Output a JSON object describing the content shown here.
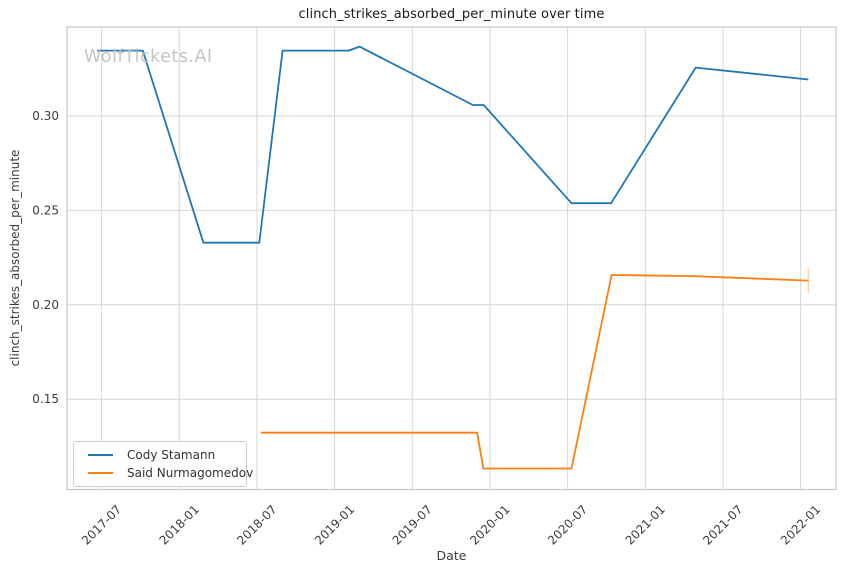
{
  "chart_data": {
    "type": "line",
    "title": "clinch_strikes_absorbed_per_minute over time",
    "xlabel": "Date",
    "ylabel": "clinch_strikes_absorbed_per_minute",
    "watermark": "WolfTickets.AI",
    "grid": true,
    "legend_position": "lower left",
    "xlim": [
      2017.277,
      2022.228
    ],
    "ylim": [
      0.1022,
      0.3471
    ],
    "x_ticks": [
      {
        "value": 2017.5,
        "label": "2017-07"
      },
      {
        "value": 2018.0,
        "label": "2018-01"
      },
      {
        "value": 2018.5,
        "label": "2018-07"
      },
      {
        "value": 2019.0,
        "label": "2019-01"
      },
      {
        "value": 2019.5,
        "label": "2019-07"
      },
      {
        "value": 2020.0,
        "label": "2020-01"
      },
      {
        "value": 2020.5,
        "label": "2020-07"
      },
      {
        "value": 2021.0,
        "label": "2021-01"
      },
      {
        "value": 2021.5,
        "label": "2021-07"
      },
      {
        "value": 2022.0,
        "label": "2022-01"
      }
    ],
    "y_ticks": [
      {
        "value": 0.15,
        "label": "0.15"
      },
      {
        "value": 0.2,
        "label": "0.20"
      },
      {
        "value": 0.25,
        "label": "0.25"
      },
      {
        "value": 0.3,
        "label": "0.30"
      }
    ],
    "series": [
      {
        "name": "Cody Stamann",
        "color": "#1f77b4",
        "points": [
          [
            2017.47,
            0.3346
          ],
          [
            2017.765,
            0.3346
          ],
          [
            2018.155,
            0.2329
          ],
          [
            2018.515,
            0.2329
          ],
          [
            2018.665,
            0.3346
          ],
          [
            2019.09,
            0.3346
          ],
          [
            2019.16,
            0.3367
          ],
          [
            2019.89,
            0.3058
          ],
          [
            2019.96,
            0.3058
          ],
          [
            2020.525,
            0.2538
          ],
          [
            2020.78,
            0.2538
          ],
          [
            2021.325,
            0.3256
          ],
          [
            2022.05,
            0.3193
          ]
        ]
      },
      {
        "name": "Said Nurmagomedov",
        "color": "#ff7f0e",
        "points": [
          [
            2018.525,
            0.1323
          ],
          [
            2019.917,
            0.1323
          ],
          [
            2019.958,
            0.1133
          ],
          [
            2020.525,
            0.1133
          ],
          [
            2020.783,
            0.2158
          ],
          [
            2021.308,
            0.2152
          ],
          [
            2022.05,
            0.2128
          ]
        ],
        "end_tick": {
          "x": 2022.05,
          "y_top": 0.2195,
          "y_bottom": 0.2062
        }
      }
    ]
  }
}
